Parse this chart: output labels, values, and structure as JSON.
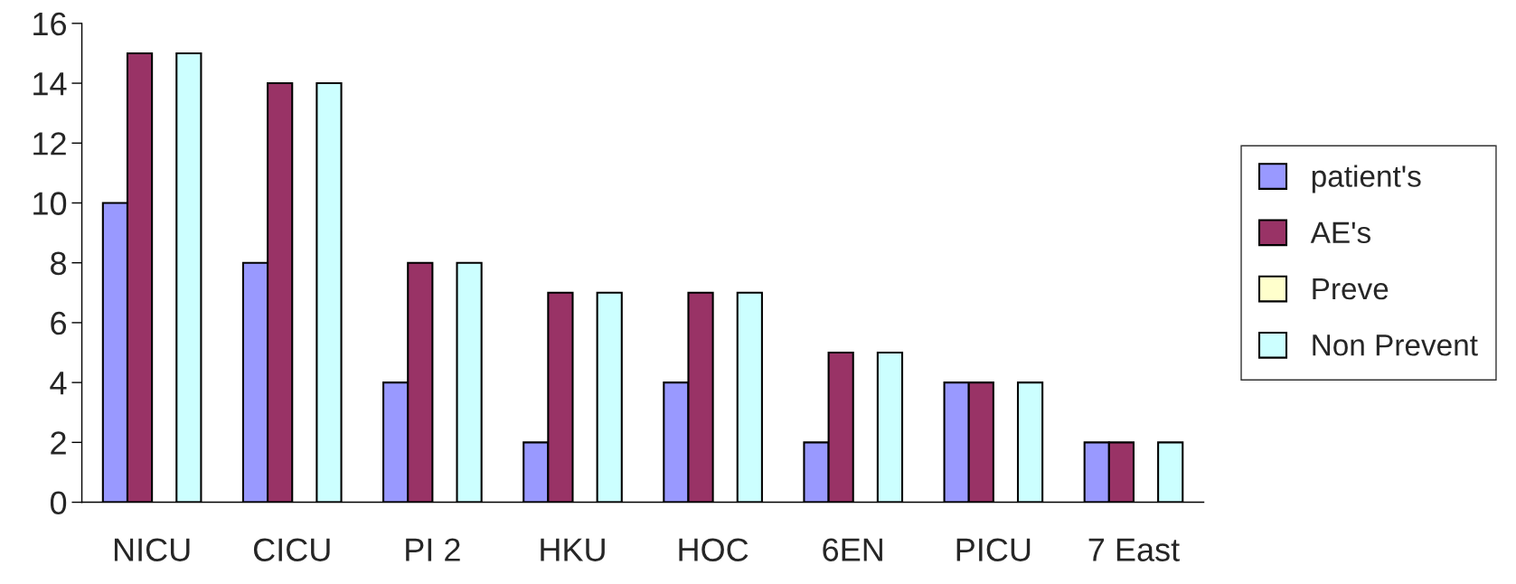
{
  "chart_data": {
    "type": "bar",
    "categories": [
      "NICU",
      "CICU",
      "PI 2",
      "HKU",
      "HOC",
      "6EN",
      "PICU",
      "7 East"
    ],
    "series": [
      {
        "name": "patient's",
        "color": "#9999ff",
        "values": [
          10,
          8,
          4,
          2,
          4,
          2,
          4,
          2
        ]
      },
      {
        "name": "AE's",
        "color": "#993366",
        "values": [
          15,
          14,
          8,
          7,
          7,
          5,
          4,
          2
        ]
      },
      {
        "name": "Preve",
        "color": "#ffffcc",
        "values": [
          0,
          0,
          0,
          0,
          0,
          0,
          0,
          0
        ]
      },
      {
        "name": "Non Prevent",
        "color": "#ccffff",
        "values": [
          15,
          14,
          8,
          7,
          7,
          5,
          4,
          2
        ]
      }
    ],
    "ylim": [
      0,
      16
    ],
    "yticks": [
      0,
      2,
      4,
      6,
      8,
      10,
      12,
      14,
      16
    ],
    "grid": false,
    "legend": "right"
  }
}
